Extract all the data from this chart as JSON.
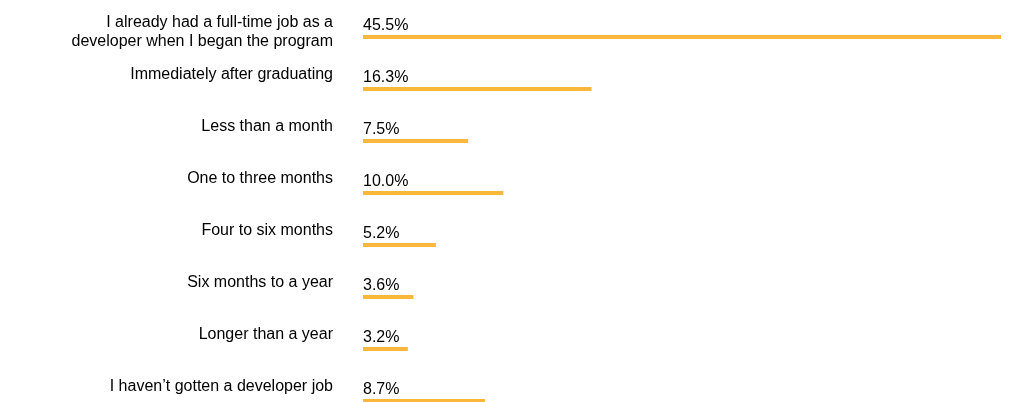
{
  "chart_data": {
    "type": "bar",
    "orientation": "horizontal",
    "categories": [
      "I already had a full-time job as a developer when I began the program",
      "Immediately after graduating",
      "Less than a month",
      "One to three months",
      "Four to six months",
      "Six months to a year",
      "Longer than a year",
      "I haven’t gotten a developer job"
    ],
    "values": [
      45.5,
      16.3,
      7.5,
      10.0,
      5.2,
      3.6,
      3.2,
      8.7
    ],
    "value_labels": [
      "45.5%",
      "16.3%",
      "7.5%",
      "10.0%",
      "5.2%",
      "3.6%",
      "3.2%",
      "8.7%"
    ],
    "color": "#fbb73c"
  }
}
